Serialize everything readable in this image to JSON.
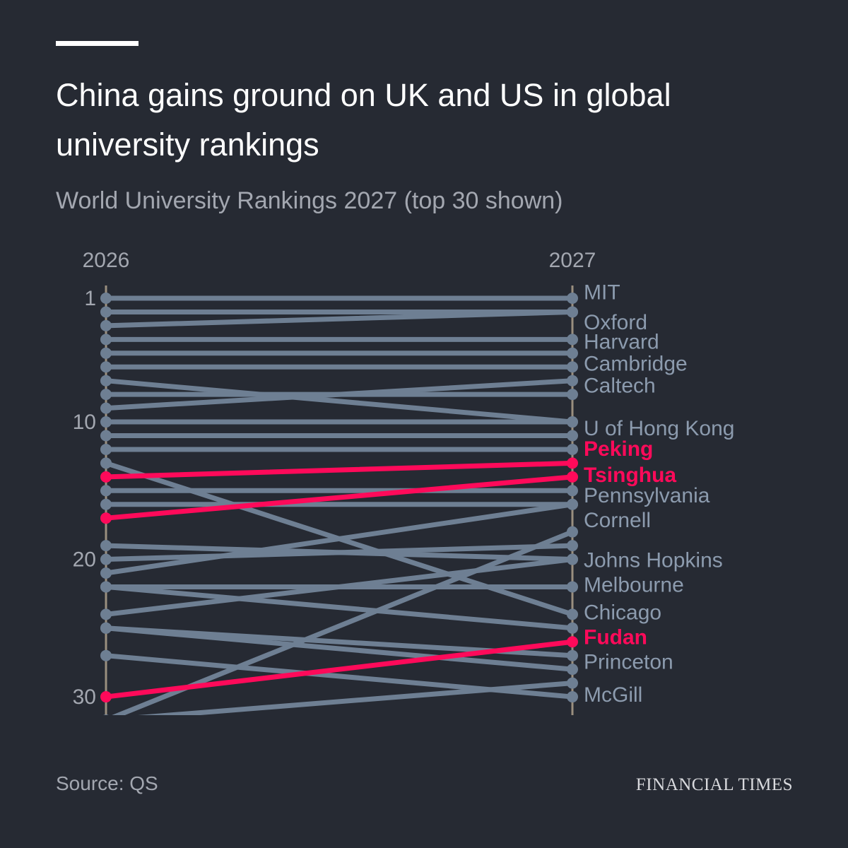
{
  "header": {
    "title": "China gains ground on UK and US in global university rankings",
    "subtitle": "World University Rankings 2027 (top 30 shown)"
  },
  "footer": {
    "source": "Source: QS",
    "logo": "FINANCIAL TIMES"
  },
  "colors": {
    "background": "#262a33",
    "line": "#6e7f93",
    "label": "#8c9bae",
    "highlight": "#ff0a5a",
    "axis": "#9a8f7f",
    "tick": "#a3a7b0"
  },
  "chart_data": {
    "type": "line",
    "x": [
      "2026",
      "2027"
    ],
    "yticks": [
      1,
      10,
      20,
      30
    ],
    "yaxis": "rank",
    "reversed": true,
    "series": [
      {
        "name": "MIT",
        "values": [
          1,
          1
        ],
        "highlight": false
      },
      {
        "name": "Oxford",
        "values": [
          2,
          2
        ],
        "highlight": false
      },
      {
        "values": [
          3,
          2
        ]
      },
      {
        "name": "Harvard",
        "values": [
          4,
          4
        ],
        "highlight": false
      },
      {
        "name": "Cambridge",
        "values": [
          5,
          5
        ],
        "highlight": false
      },
      {
        "values": [
          6,
          6
        ]
      },
      {
        "name": "Caltech",
        "values": [
          7,
          10
        ],
        "highlight": false
      },
      {
        "values": [
          8,
          8
        ]
      },
      {
        "values": [
          9,
          7
        ]
      },
      {
        "name": "U of Hong Kong",
        "values": [
          10,
          10
        ],
        "highlight": false
      },
      {
        "values": [
          11,
          11
        ]
      },
      {
        "values": [
          12,
          12
        ]
      },
      {
        "name": "Chicago",
        "values": [
          13,
          24
        ],
        "highlight": false
      },
      {
        "name": "Peking",
        "values": [
          14,
          13
        ],
        "highlight": true
      },
      {
        "name": "Pennsylvania",
        "values": [
          15,
          15
        ],
        "highlight": false
      },
      {
        "values": [
          16,
          16
        ]
      },
      {
        "name": "Tsinghua",
        "values": [
          17,
          14
        ],
        "highlight": true
      },
      {
        "name": "Johns Hopkins",
        "values": [
          19,
          20
        ],
        "highlight": false
      },
      {
        "values": [
          20,
          19
        ]
      },
      {
        "name": "Cornell",
        "values": [
          21,
          16
        ],
        "highlight": false
      },
      {
        "name": "Melbourne",
        "values": [
          22,
          22
        ],
        "highlight": false
      },
      {
        "values": [
          22,
          25
        ]
      },
      {
        "values": [
          24,
          20
        ]
      },
      {
        "name": "Princeton",
        "values": [
          25,
          27
        ],
        "highlight": false
      },
      {
        "values": [
          25,
          28
        ]
      },
      {
        "name": "McGill",
        "values": [
          27,
          30
        ],
        "highlight": false
      },
      {
        "name": "Fudan",
        "values": [
          30,
          26
        ],
        "highlight": true
      },
      {
        "values": [
          31.7,
          29
        ]
      },
      {
        "values": [
          31.7,
          18
        ]
      }
    ],
    "labels": [
      {
        "text": "MIT",
        "rank": 0.5,
        "highlight": false
      },
      {
        "text": "Oxford",
        "rank": 2.7,
        "highlight": false
      },
      {
        "text": "Harvard",
        "rank": 4.1,
        "highlight": false
      },
      {
        "text": "Cambridge",
        "rank": 5.7,
        "highlight": false
      },
      {
        "text": "Caltech",
        "rank": 7.3,
        "highlight": false
      },
      {
        "text": "U of Hong Kong",
        "rank": 10.4,
        "highlight": false
      },
      {
        "text": "Peking",
        "rank": 11.9,
        "highlight": true
      },
      {
        "text": "Tsinghua",
        "rank": 13.8,
        "highlight": true
      },
      {
        "text": "Pennsylvania",
        "rank": 15.3,
        "highlight": false
      },
      {
        "text": "Cornell",
        "rank": 17.1,
        "highlight": false
      },
      {
        "text": "Johns Hopkins",
        "rank": 20.0,
        "highlight": false
      },
      {
        "text": "Melbourne",
        "rank": 21.8,
        "highlight": false
      },
      {
        "text": "Chicago",
        "rank": 23.8,
        "highlight": false
      },
      {
        "text": "Fudan",
        "rank": 25.6,
        "highlight": true
      },
      {
        "text": "Princeton",
        "rank": 27.4,
        "highlight": false
      },
      {
        "text": "McGill",
        "rank": 29.8,
        "highlight": false
      }
    ]
  }
}
